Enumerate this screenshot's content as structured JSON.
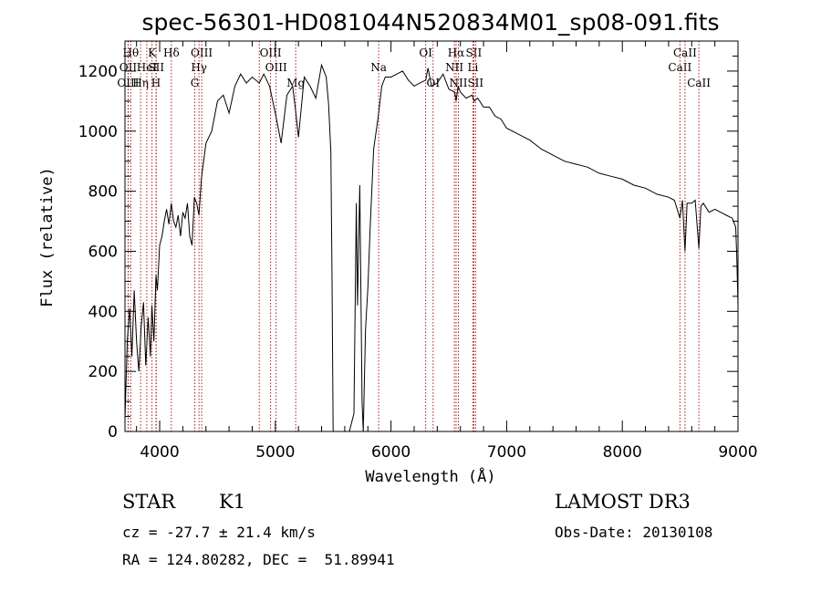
{
  "chart_data": {
    "type": "line",
    "title": "spec-56301-HD081044N520834M01_sp08-091.fits",
    "xlabel": "Wavelength (Å)",
    "ylabel": "Flux (relative)",
    "xlim": [
      3700,
      9000
    ],
    "ylim": [
      0,
      1300
    ],
    "xticks": [
      4000,
      5000,
      6000,
      7000,
      8000,
      9000
    ],
    "yticks": [
      0,
      200,
      400,
      600,
      800,
      1000,
      1200
    ],
    "series": [
      {
        "x": [
          3700,
          3720,
          3740,
          3760,
          3780,
          3800,
          3820,
          3840,
          3860,
          3880,
          3900,
          3920,
          3933,
          3950,
          3968,
          3980,
          4000,
          4020,
          4040,
          4060,
          4080,
          4101,
          4120,
          4140,
          4160,
          4180,
          4200,
          4220,
          4240,
          4260,
          4280,
          4300,
          4320,
          4340,
          4360,
          4380,
          4400,
          4450,
          4500,
          4550,
          4600,
          4650,
          4700,
          4750,
          4800,
          4861,
          4900,
          4950,
          5000,
          5050,
          5100,
          5150,
          5172,
          5200,
          5250,
          5300,
          5350,
          5400,
          5440,
          5460,
          5480,
          5490,
          5500,
          5520,
          5560,
          5600,
          5640,
          5680,
          5700,
          5710,
          5730,
          5750,
          5760,
          5780,
          5800,
          5820,
          5850,
          5890,
          5920,
          5950,
          6000,
          6050,
          6100,
          6150,
          6200,
          6250,
          6300,
          6320,
          6350,
          6400,
          6450,
          6500,
          6550,
          6563,
          6580,
          6600,
          6650,
          6700,
          6720,
          6750,
          6800,
          6850,
          6900,
          6950,
          7000,
          7100,
          7200,
          7300,
          7400,
          7500,
          7600,
          7700,
          7800,
          7900,
          8000,
          8100,
          8200,
          8300,
          8400,
          8450,
          8498,
          8520,
          8542,
          8560,
          8600,
          8630,
          8662,
          8680,
          8700,
          8750,
          8800,
          8850,
          8900,
          8950,
          8980,
          8990,
          9000
        ],
        "y": [
          40,
          300,
          410,
          250,
          470,
          300,
          200,
          350,
          430,
          220,
          380,
          250,
          420,
          300,
          520,
          470,
          620,
          650,
          700,
          740,
          690,
          760,
          700,
          680,
          720,
          650,
          730,
          710,
          760,
          650,
          620,
          780,
          760,
          720,
          840,
          900,
          960,
          1000,
          1100,
          1120,
          1060,
          1150,
          1190,
          1160,
          1180,
          1160,
          1190,
          1150,
          1060,
          960,
          1120,
          1150,
          1080,
          980,
          1180,
          1150,
          1110,
          1220,
          1180,
          1090,
          930,
          500,
          0,
          0,
          0,
          0,
          0,
          60,
          760,
          420,
          820,
          100,
          0,
          340,
          480,
          680,
          940,
          1050,
          1150,
          1180,
          1180,
          1190,
          1200,
          1170,
          1150,
          1160,
          1170,
          1210,
          1150,
          1160,
          1190,
          1140,
          1130,
          1100,
          1150,
          1130,
          1110,
          1120,
          1100,
          1110,
          1080,
          1080,
          1050,
          1040,
          1010,
          990,
          970,
          940,
          920,
          900,
          890,
          880,
          860,
          850,
          840,
          820,
          810,
          790,
          780,
          770,
          710,
          770,
          600,
          760,
          760,
          770,
          610,
          750,
          760,
          730,
          740,
          730,
          720,
          710,
          680,
          580,
          420
        ]
      }
    ],
    "spectral_lines": [
      {
        "wavelength": 3750,
        "label": "Hθ",
        "row": 0
      },
      {
        "wavelength": 3727,
        "label": "OII",
        "row": 1
      },
      {
        "wavelength": 3727,
        "label": "OIII",
        "row": 2
      },
      {
        "wavelength": 3835,
        "label": "Hη",
        "row": 2
      },
      {
        "wavelength": 3889,
        "label": "HeI",
        "row": 1
      },
      {
        "wavelength": 3934,
        "label": "K",
        "row": 0
      },
      {
        "wavelength": 3968,
        "label": "H",
        "row": 2
      },
      {
        "wavelength": 3970,
        "label": "SII",
        "row": 1
      },
      {
        "wavelength": 4101,
        "label": "Hδ",
        "row": 0
      },
      {
        "wavelength": 4304,
        "label": "G",
        "row": 2
      },
      {
        "wavelength": 4340,
        "label": "Hγ",
        "row": 1
      },
      {
        "wavelength": 4363,
        "label": "OIII",
        "row": 0
      },
      {
        "wavelength": 4861,
        "label": "",
        "row": -1
      },
      {
        "wavelength": 4959,
        "label": "OIII",
        "row": 0
      },
      {
        "wavelength": 5007,
        "label": "OIII",
        "row": 1
      },
      {
        "wavelength": 5176,
        "label": "Mg",
        "row": 2
      },
      {
        "wavelength": 5893,
        "label": "Na",
        "row": 1
      },
      {
        "wavelength": 6300,
        "label": "OI",
        "row": 0
      },
      {
        "wavelength": 6364,
        "label": "OI",
        "row": 2
      },
      {
        "wavelength": 6548,
        "label": "NII",
        "row": 1
      },
      {
        "wavelength": 6563,
        "label": "Hα",
        "row": 0
      },
      {
        "wavelength": 6583,
        "label": "NII",
        "row": 2
      },
      {
        "wavelength": 6708,
        "label": "Li",
        "row": 1
      },
      {
        "wavelength": 6716,
        "label": "SII",
        "row": 0
      },
      {
        "wavelength": 6731,
        "label": "SII",
        "row": 2
      },
      {
        "wavelength": 8498,
        "label": "CaII",
        "row": 1
      },
      {
        "wavelength": 8542,
        "label": "CaII",
        "row": 0
      },
      {
        "wavelength": 8662,
        "label": "CaII",
        "row": 2
      }
    ],
    "grid": false,
    "line_color": "#000000",
    "marker_color": "#aa0000"
  },
  "info": {
    "object_class": "STAR",
    "subclass": "K1",
    "survey": "LAMOST DR3",
    "cz": "cz = -27.7 ± 21.4 km/s",
    "obs_date": "Obs-Date: 20130108",
    "radec": "RA = 124.80282, DEC =  51.89941"
  }
}
